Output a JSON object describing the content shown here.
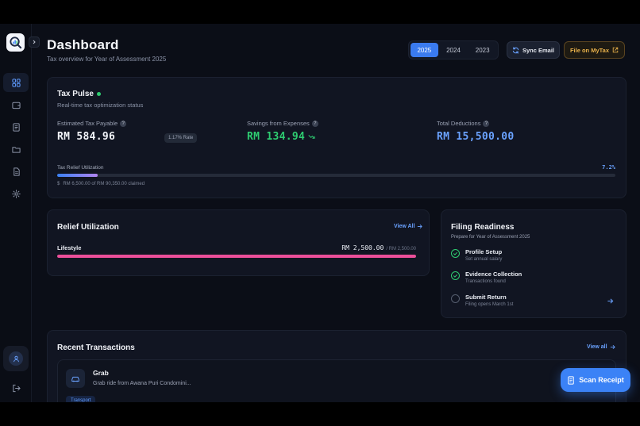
{
  "header": {
    "title": "Dashboard",
    "subtitle": "Tax overview for Year of Assessment 2025",
    "years": [
      "2025",
      "2024",
      "2023"
    ],
    "selected_year": "2025",
    "sync_label": "Sync Email",
    "mytax_label": "File on MyTax"
  },
  "sidebar": {
    "items": [
      {
        "icon": "dashboard-icon",
        "active": true
      },
      {
        "icon": "wallet-icon"
      },
      {
        "icon": "receipt-icon"
      },
      {
        "icon": "folder-icon"
      },
      {
        "icon": "document-icon"
      },
      {
        "icon": "gear-icon"
      }
    ]
  },
  "tax_pulse": {
    "title": "Tax Pulse",
    "subtitle": "Real-time tax optimization status",
    "estimated_label": "Estimated Tax Payable",
    "estimated_value": "RM 584.96",
    "rate": "1.17% Rate",
    "savings_label": "Savings from Expenses",
    "savings_value": "RM 134.94",
    "deductions_label": "Total Deductions",
    "deductions_value": "RM 15,500.00",
    "utilization_label": "Tax Relief Utilization",
    "utilization_percent": "7.2%",
    "utilization_fraction": 0.072,
    "claimed_text": "RM 6,500.00 of RM 90,350.00 claimed",
    "colors": {
      "green": "#2ecc71",
      "blue": "#6aa2ff"
    }
  },
  "relief": {
    "title": "Relief Utilization",
    "view_all": "View All",
    "items": [
      {
        "name": "Lifestyle",
        "value": "RM 2,500.00",
        "limit": "/ RM 2,500.00",
        "fraction": 1.0,
        "color": "#ec4f9a"
      }
    ]
  },
  "filing": {
    "title": "Filing Readiness",
    "subtitle": "Prepare for Year of Assessment 2025",
    "steps": [
      {
        "title": "Profile Setup",
        "sub": "Set annual salary",
        "done": true
      },
      {
        "title": "Evidence Collection",
        "sub": "Transactions found",
        "done": true
      },
      {
        "title": "Submit Return",
        "sub": "Filing opens March 1st",
        "done": false
      }
    ]
  },
  "recent": {
    "title": "Recent Transactions",
    "view_all": "View all",
    "items": [
      {
        "merchant": "Grab",
        "description": "Grab ride from Awana Puri Condomini...",
        "category": "Transport"
      }
    ]
  },
  "scan_label": "Scan Receipt"
}
